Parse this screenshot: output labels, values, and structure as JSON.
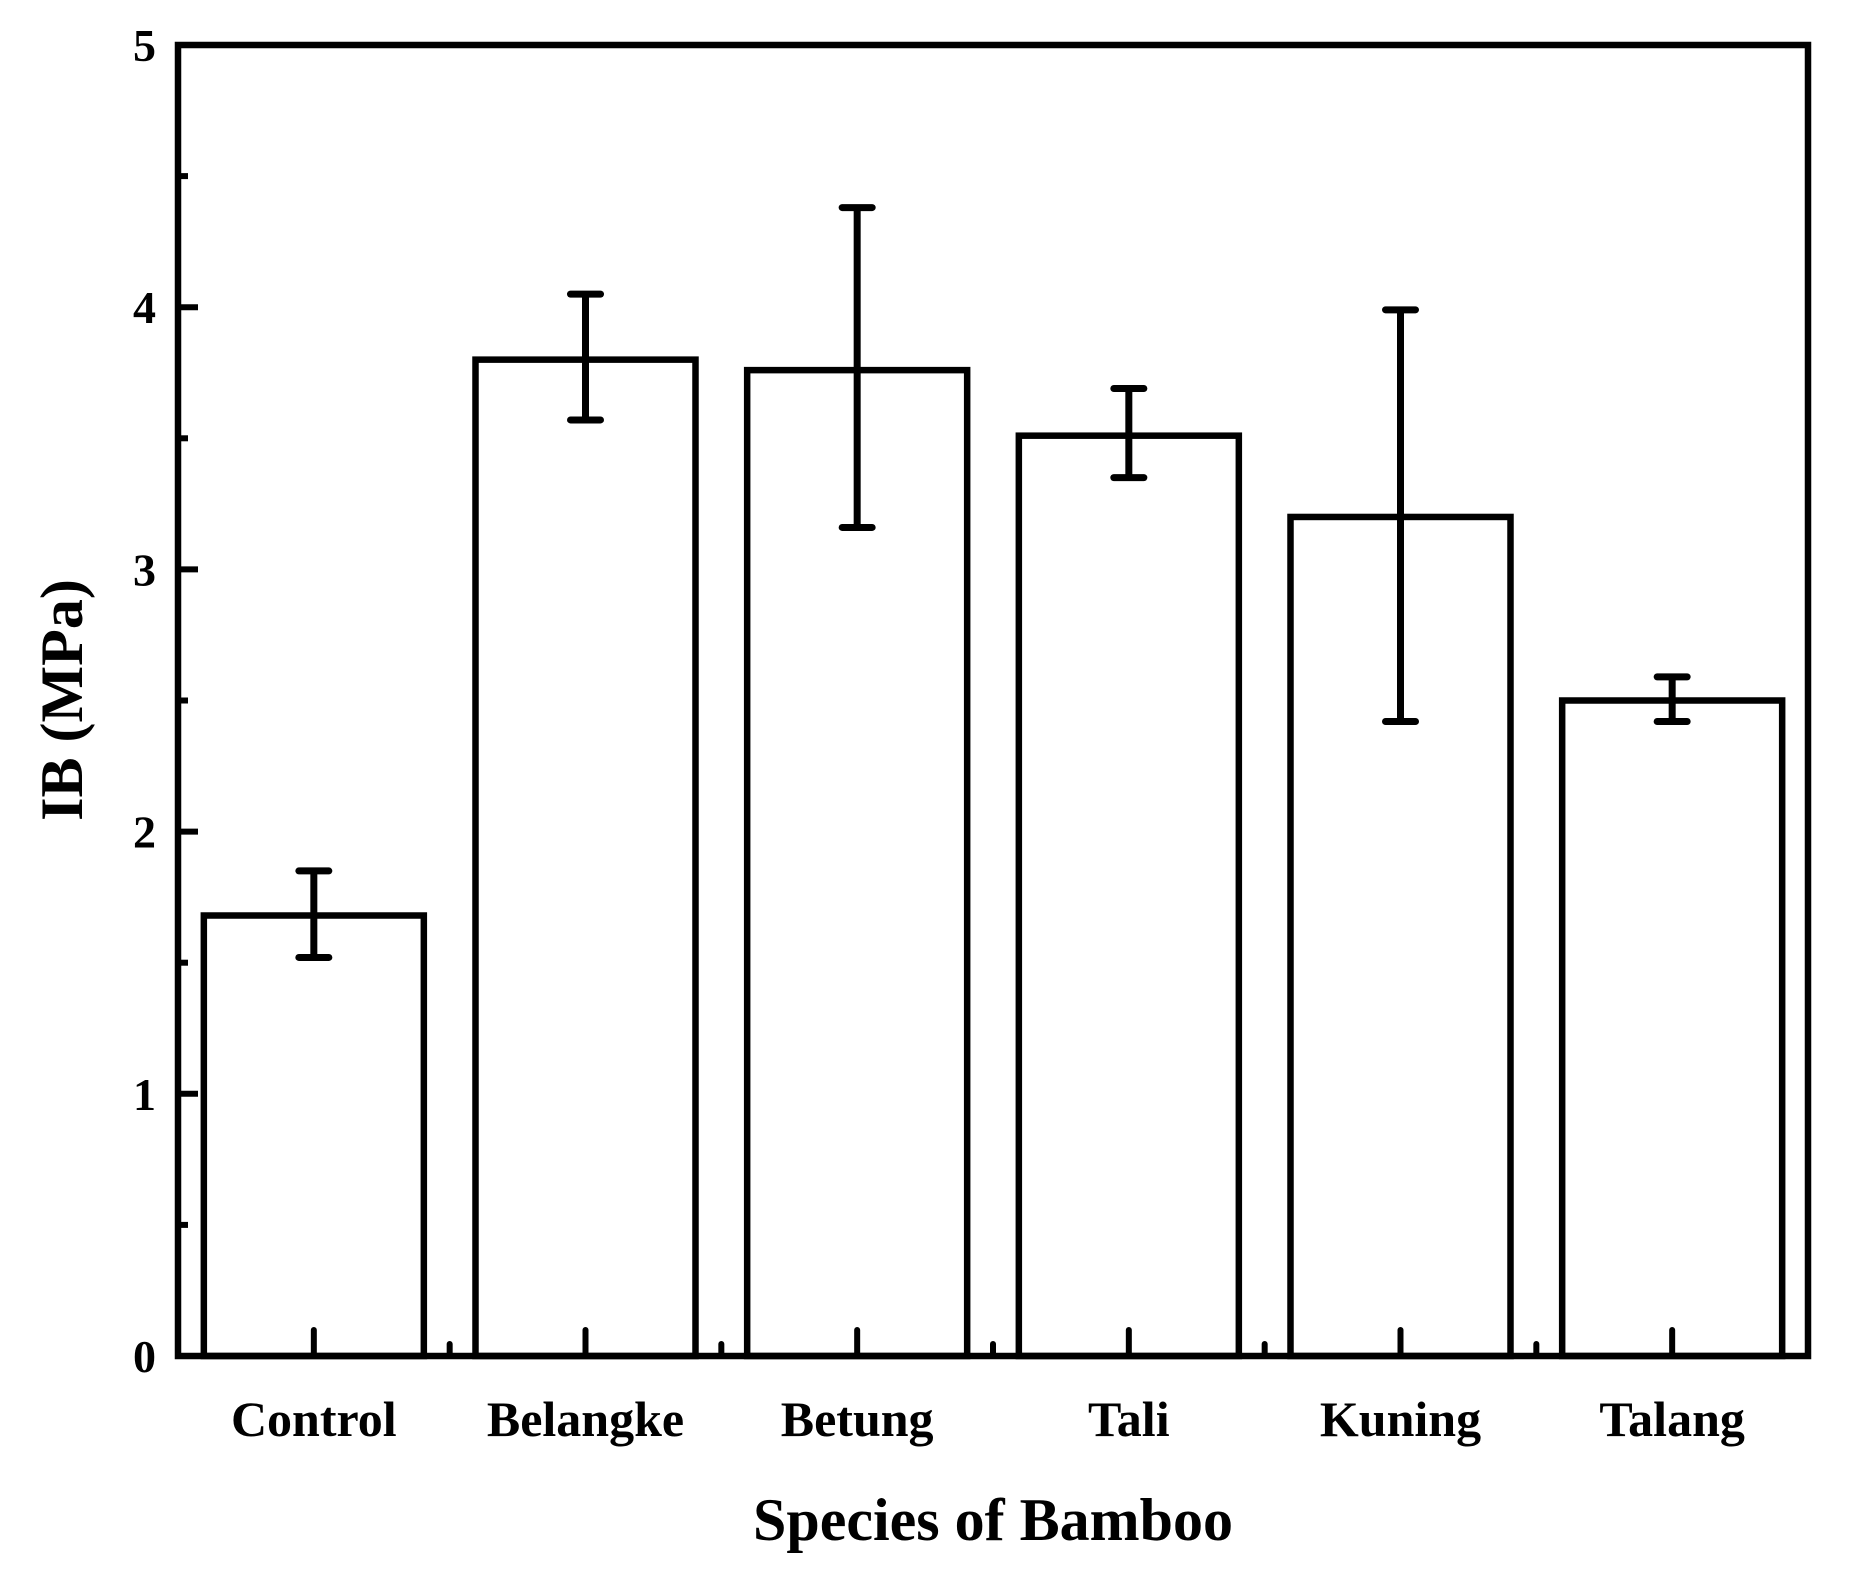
{
  "chart_data": {
    "type": "bar",
    "title": "",
    "xlabel": "Species of Bamboo",
    "ylabel": "IB (MPa)",
    "categories": [
      "Control",
      "Belangke",
      "Betung",
      "Tali",
      "Kuning",
      "Talang"
    ],
    "values": [
      1.68,
      3.8,
      3.76,
      3.51,
      3.2,
      2.5
    ],
    "error_low": [
      1.52,
      3.57,
      3.16,
      3.35,
      2.42,
      2.42
    ],
    "error_high": [
      1.85,
      4.05,
      4.38,
      3.69,
      3.99,
      2.59
    ],
    "ylim": [
      0,
      5
    ],
    "yticks": [
      0,
      1,
      2,
      3,
      4,
      5
    ],
    "ytick_labels": [
      "0",
      "1",
      "2",
      "3",
      "4",
      "5"
    ],
    "grid": false,
    "bar_fill": "#ffffff",
    "bar_stroke": "#000000"
  }
}
